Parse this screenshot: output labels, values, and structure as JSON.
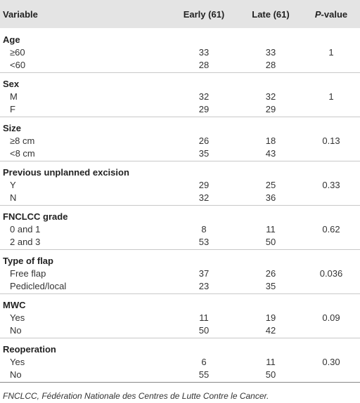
{
  "table": {
    "header": [
      "Variable",
      "Early (61)",
      "Late (61)",
      "P-value"
    ],
    "groups": [
      {
        "label": "Age",
        "p": "1",
        "rows": [
          [
            "≥60",
            33,
            33
          ],
          [
            "<60",
            28,
            28
          ]
        ]
      },
      {
        "label": "Sex",
        "p": "1",
        "rows": [
          [
            "M",
            32,
            32
          ],
          [
            "F",
            29,
            29
          ]
        ]
      },
      {
        "label": "Size",
        "p": "0.13",
        "rows": [
          [
            "≥8 cm",
            26,
            18
          ],
          [
            "<8 cm",
            35,
            43
          ]
        ]
      },
      {
        "label": "Previous unplanned excision",
        "p": "0.33",
        "rows": [
          [
            "Y",
            29,
            25
          ],
          [
            "N",
            32,
            36
          ]
        ]
      },
      {
        "label": "FNCLCC grade",
        "p": "0.62",
        "rows": [
          [
            "0 and 1",
            8,
            11
          ],
          [
            "2 and 3",
            53,
            50
          ]
        ]
      },
      {
        "label": "Type of flap",
        "p": "0.036",
        "rows": [
          [
            "Free flap",
            37,
            26
          ],
          [
            "Pedicled/local",
            23,
            35
          ]
        ]
      },
      {
        "label": "MWC",
        "p": "0.09",
        "rows": [
          [
            "Yes",
            11,
            19
          ],
          [
            "No",
            50,
            42
          ]
        ]
      },
      {
        "label": "Reoperation",
        "p": "0.30",
        "rows": [
          [
            "Yes",
            6,
            11
          ],
          [
            "No",
            55,
            50
          ]
        ]
      }
    ],
    "footnote": "FNCLCC, Fédération Nationale des Centres de Lutte Contre le Cancer."
  }
}
